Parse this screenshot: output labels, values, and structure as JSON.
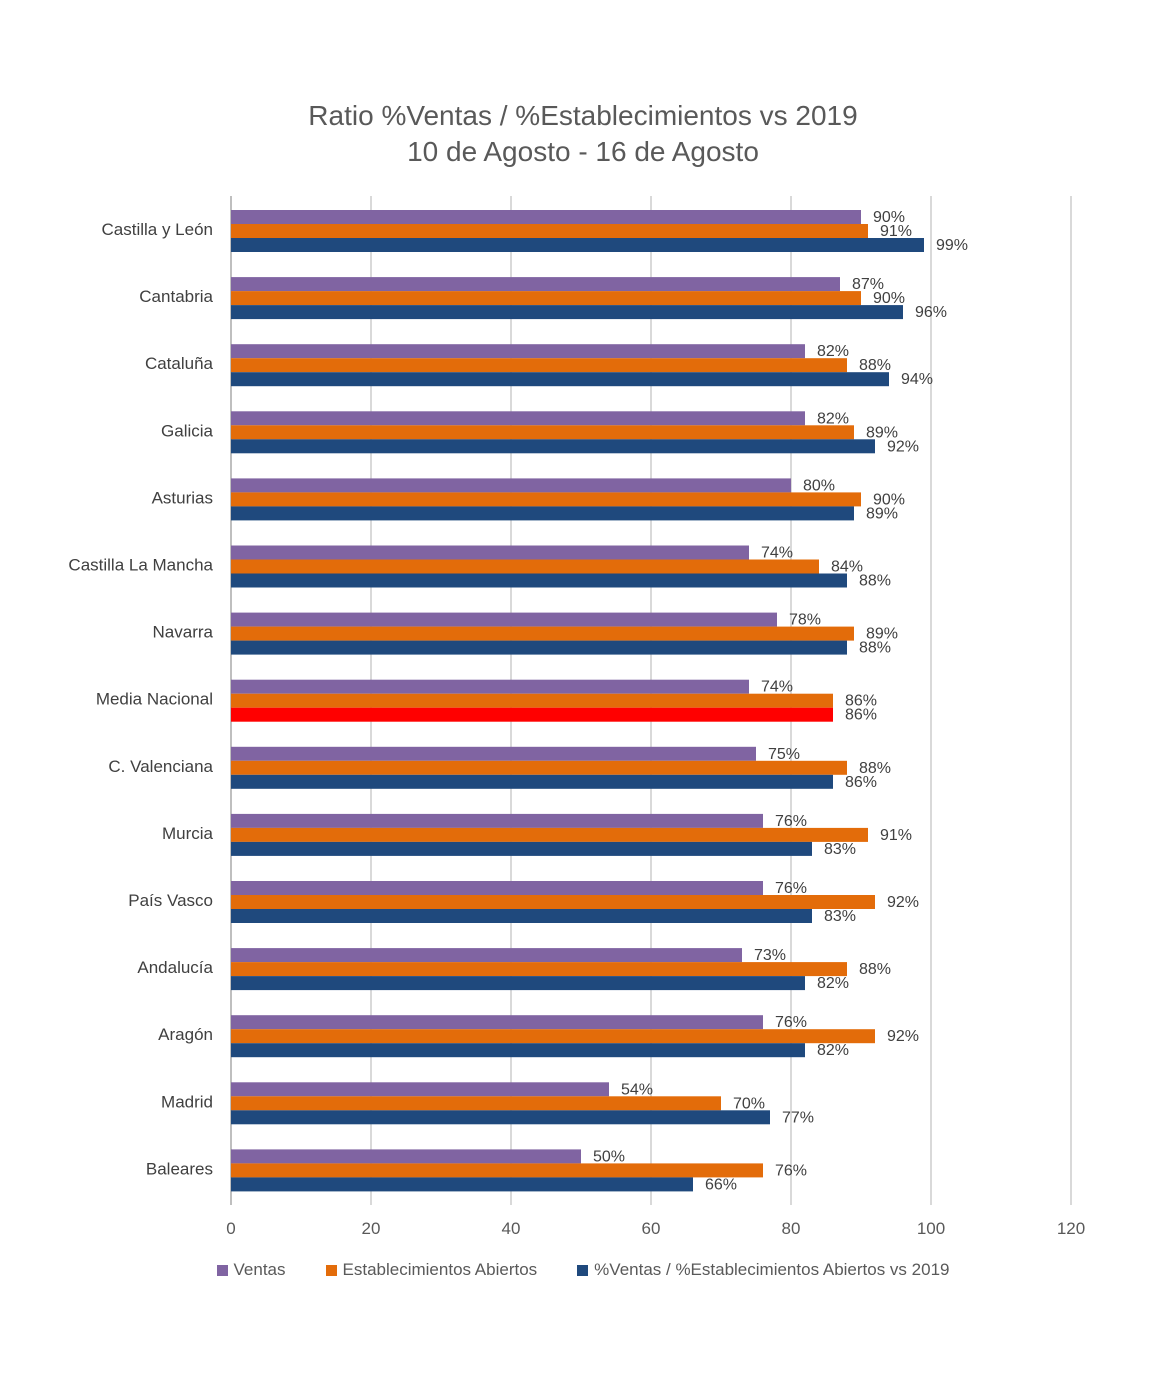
{
  "chart_data": {
    "type": "bar",
    "orientation": "horizontal",
    "title": "Ratio %Ventas / %Establecimientos  vs 2019",
    "subtitle": "10 de Agosto - 16 de Agosto",
    "categories": [
      "Castilla y León",
      "Cantabria",
      "Cataluña",
      "Galicia",
      "Asturias",
      "Castilla La Mancha",
      "Navarra",
      "Media Nacional",
      "C. Valenciana",
      "Murcia",
      "País Vasco",
      "Andalucía",
      "Aragón",
      "Madrid",
      "Baleares"
    ],
    "series": [
      {
        "name": "Ventas",
        "color": "#8064a2",
        "values": [
          90,
          87,
          82,
          82,
          80,
          74,
          78,
          74,
          75,
          76,
          76,
          73,
          76,
          54,
          50
        ],
        "labels": [
          "90%",
          "87%",
          "82%",
          "82%",
          "80%",
          "74%",
          "78%",
          "74%",
          "75%",
          "76%",
          "76%",
          "73%",
          "76%",
          "54%",
          "50%"
        ]
      },
      {
        "name": "Establecimientos Abiertos",
        "color": "#e36c0a",
        "values": [
          91,
          90,
          88,
          89,
          90,
          84,
          89,
          86,
          88,
          91,
          92,
          88,
          92,
          70,
          76
        ],
        "labels": [
          "91%",
          "90%",
          "88%",
          "89%",
          "90%",
          "84%",
          "89%",
          "86%",
          "88%",
          "91%",
          "92%",
          "88%",
          "92%",
          "70%",
          "76%"
        ]
      },
      {
        "name": "%Ventas / %Establecimientos Abiertos vs 2019",
        "color": "#1f497d",
        "highlight_category": "Media Nacional",
        "highlight_color": "#ff0000",
        "values": [
          99,
          96,
          94,
          92,
          89,
          88,
          88,
          86,
          86,
          83,
          83,
          82,
          82,
          77,
          66
        ],
        "labels": [
          "99%",
          "96%",
          "94%",
          "92%",
          "89%",
          "88%",
          "88%",
          "86%",
          "86%",
          "83%",
          "83%",
          "82%",
          "82%",
          "77%",
          "66%"
        ]
      }
    ],
    "xlim": [
      0,
      120
    ],
    "xticks": [
      0,
      20,
      40,
      60,
      80,
      100,
      120
    ],
    "xtick_labels": [
      "0",
      "20",
      "40",
      "60",
      "80",
      "100",
      "120"
    ],
    "grid": true,
    "legend_position": "bottom"
  }
}
